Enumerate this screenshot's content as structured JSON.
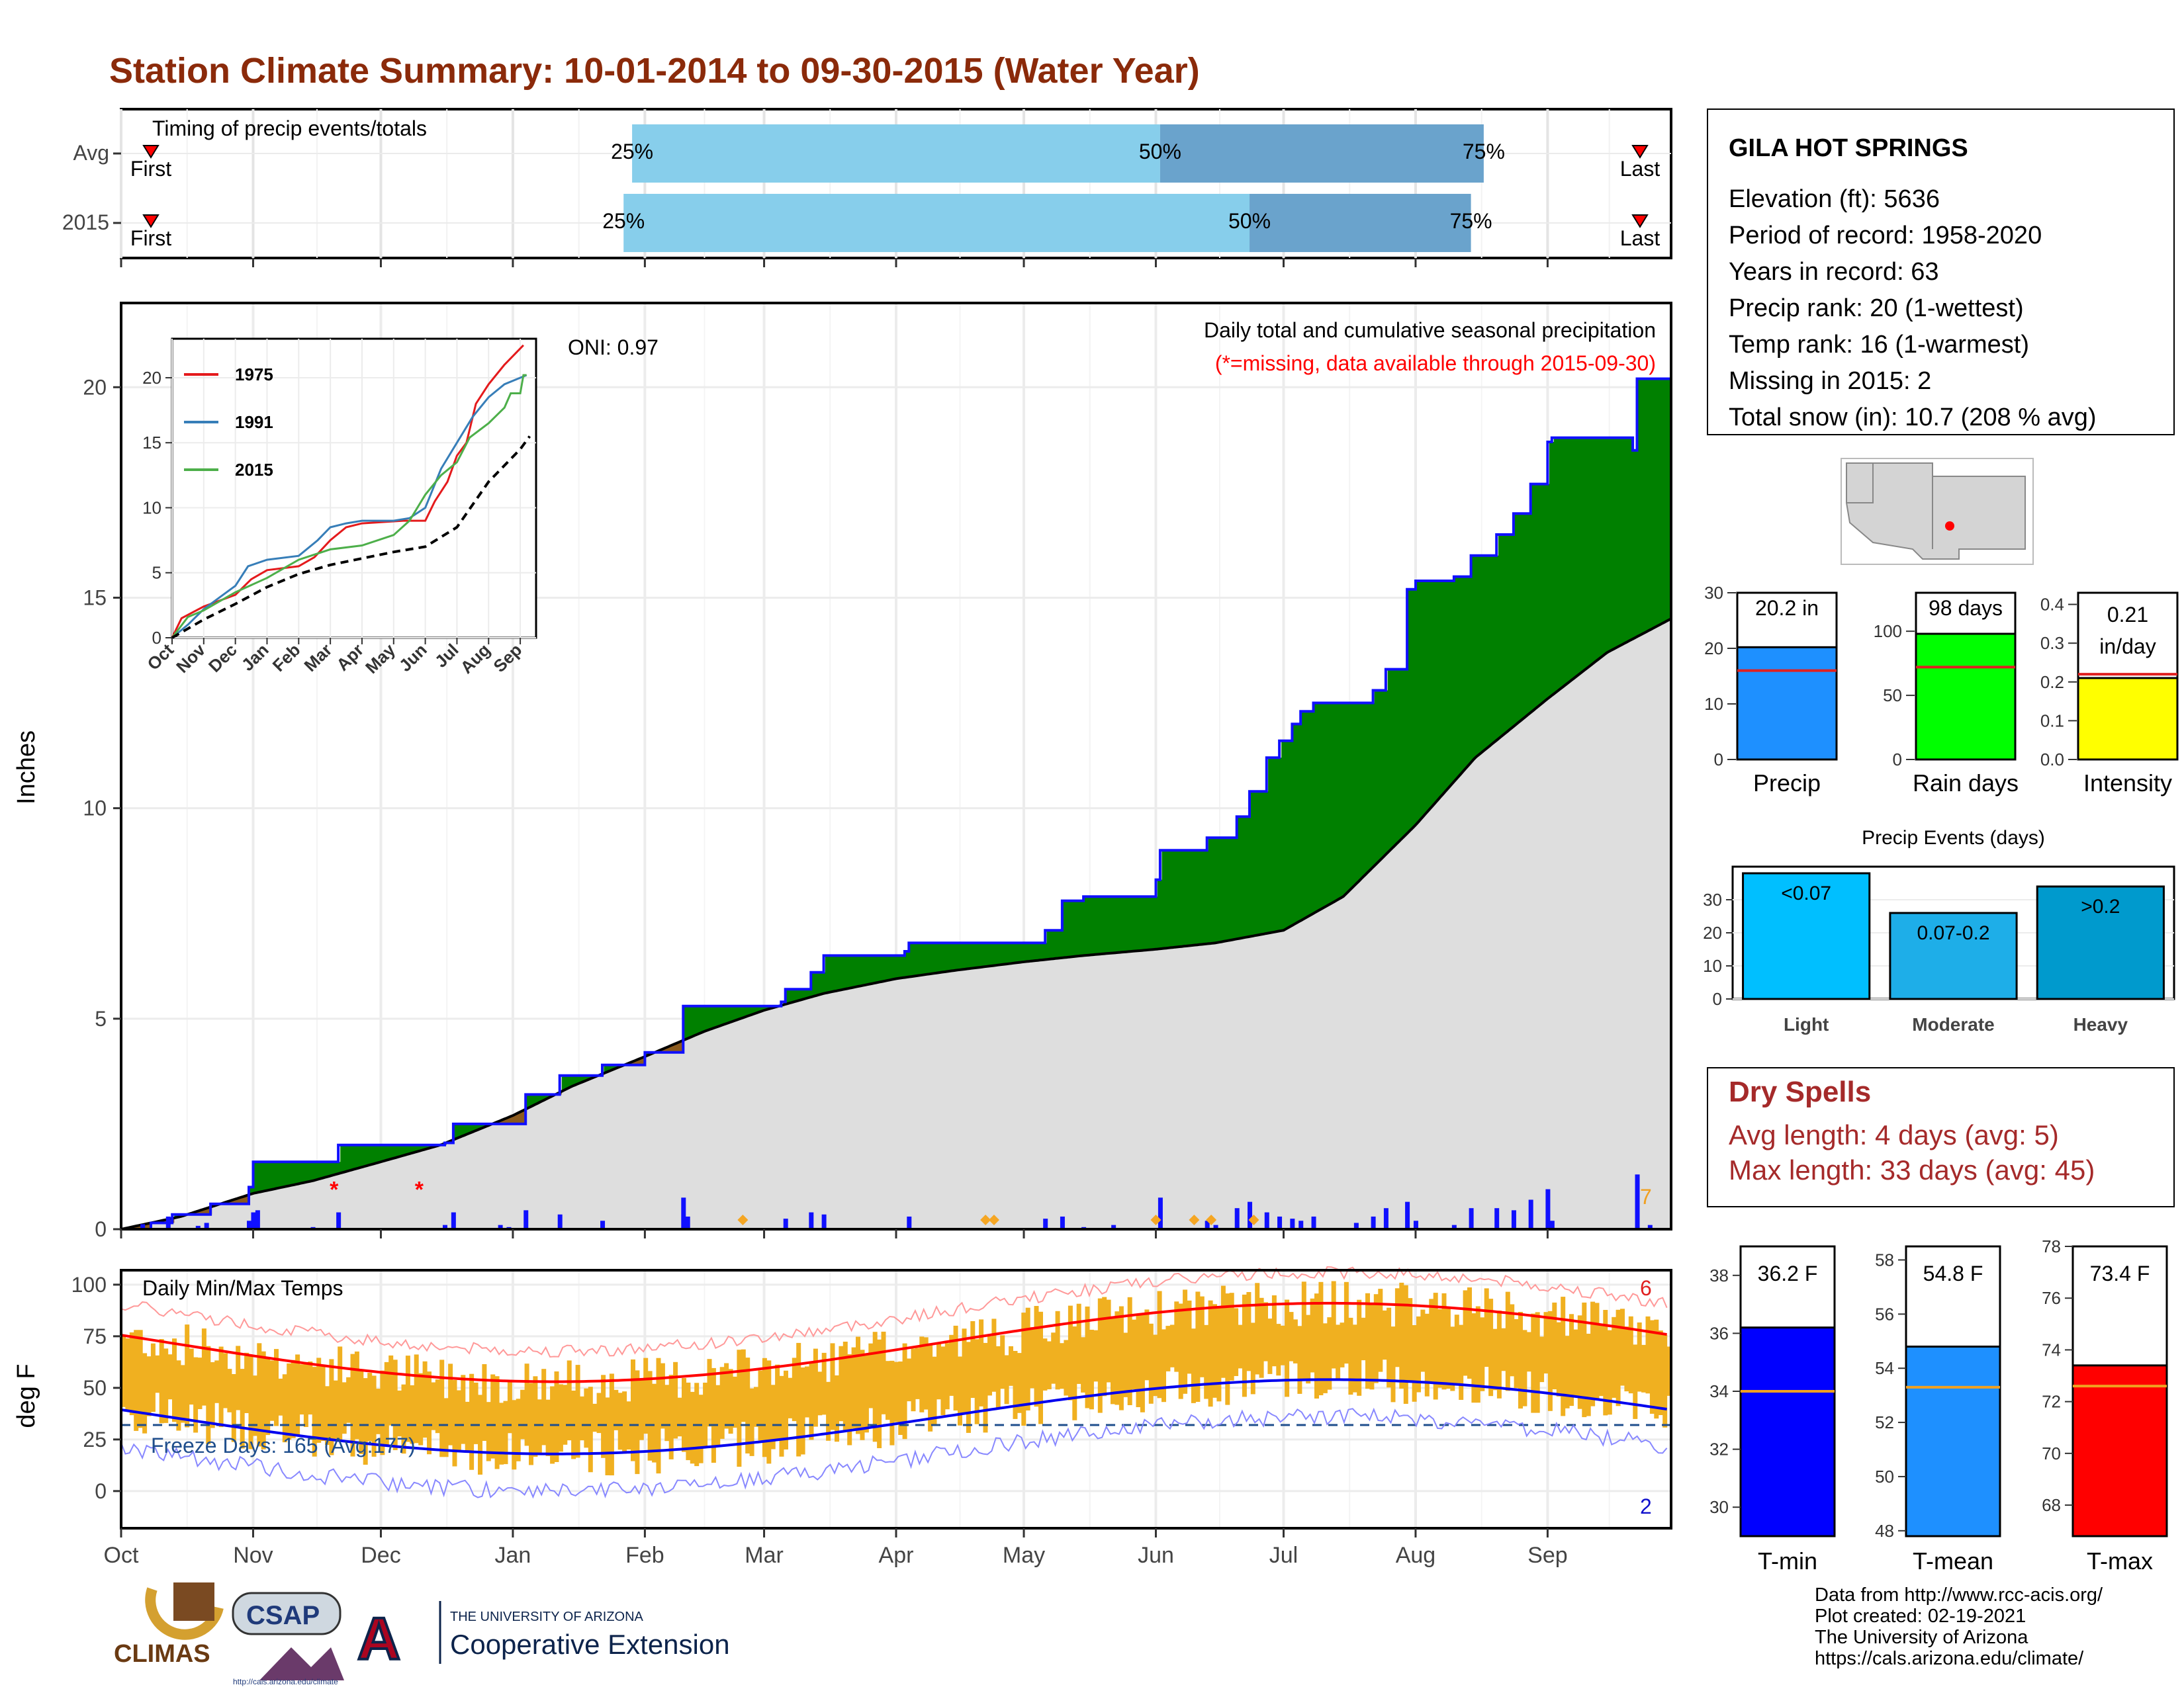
{
  "title": "Station Climate Summary: 10-01-2014 to 09-30-2015 (Water Year)",
  "colors": {
    "title": "#8b2a0a",
    "green_above": "#008000",
    "brown_below": "#8b5a1e",
    "normal_fill": "#dedede",
    "precip_bar": "#1010ff",
    "timing_light": "#87ceeb",
    "timing_dark": "#6aa3cc",
    "temp_bar": "#f0b020",
    "missing": "#ff0000"
  },
  "timing": {
    "label": "Timing of precip events/totals",
    "rows": [
      {
        "name": "Avg",
        "first_label": "First",
        "last_label": "Last",
        "first_date": "2014-10-04",
        "last_date": "2015-09-30",
        "p25": "2015-01-29",
        "p50": "2015-06-02",
        "p75": "2015-08-17",
        "p25_label": "25%",
        "p50_label": "50%",
        "p75_label": "75%"
      },
      {
        "name": "2015",
        "first_label": "First",
        "last_label": "Last",
        "first_date": "2014-10-01",
        "last_date": "2015-09-30",
        "p25": "2015-01-27",
        "p50": "2015-06-23",
        "p75": "2015-08-14",
        "p25_label": "25%",
        "p50_label": "50%",
        "p75_label": "75%"
      }
    ]
  },
  "precip_chart": {
    "ylabel": "Inches",
    "yticks": [
      0,
      5,
      10,
      15,
      20
    ],
    "ylim": [
      0,
      22
    ],
    "oni_label": "ONI: 0.97",
    "legend_title": "Daily total and cumulative seasonal precipitation",
    "missing_note": "(*=missing, data available through 2015-09-30)",
    "right_count": "7",
    "missing_dates": [
      "2014-11-20",
      "2014-12-10"
    ],
    "snow_dates": [
      "2015-02-24",
      "2015-04-22",
      "2015-04-24",
      "2015-06-01",
      "2015-06-10",
      "2015-06-14",
      "2015-06-24"
    ],
    "cumulative_2015": [
      [
        "2014-10-01",
        0
      ],
      [
        "2014-10-08",
        0.15
      ],
      [
        "2014-10-13",
        0.35
      ],
      [
        "2014-10-22",
        0.6
      ],
      [
        "2014-10-31",
        1.0
      ],
      [
        "2014-11-01",
        1.6
      ],
      [
        "2014-11-20",
        1.6
      ],
      [
        "2014-11-21",
        2.0
      ],
      [
        "2014-12-16",
        2.05
      ],
      [
        "2014-12-18",
        2.5
      ],
      [
        "2015-01-04",
        3.2
      ],
      [
        "2015-01-12",
        3.65
      ],
      [
        "2015-01-22",
        3.9
      ],
      [
        "2015-02-01",
        4.2
      ],
      [
        "2015-02-09",
        4.2
      ],
      [
        "2015-02-10",
        5.3
      ],
      [
        "2015-03-05",
        5.4
      ],
      [
        "2015-03-06",
        5.7
      ],
      [
        "2015-03-12",
        6.1
      ],
      [
        "2015-03-15",
        6.5
      ],
      [
        "2015-04-03",
        6.6
      ],
      [
        "2015-04-04",
        6.8
      ],
      [
        "2015-05-06",
        7.1
      ],
      [
        "2015-05-10",
        7.8
      ],
      [
        "2015-05-15",
        7.9
      ],
      [
        "2015-06-01",
        8.3
      ],
      [
        "2015-06-02",
        9.0
      ],
      [
        "2015-06-12",
        9.0
      ],
      [
        "2015-06-13",
        9.3
      ],
      [
        "2015-06-20",
        9.8
      ],
      [
        "2015-06-23",
        10.4
      ],
      [
        "2015-06-27",
        11.2
      ],
      [
        "2015-06-30",
        11.6
      ],
      [
        "2015-07-03",
        12.0
      ],
      [
        "2015-07-05",
        12.3
      ],
      [
        "2015-07-08",
        12.5
      ],
      [
        "2015-07-22",
        12.8
      ],
      [
        "2015-07-25",
        13.3
      ],
      [
        "2015-07-30",
        15.2
      ],
      [
        "2015-08-01",
        15.4
      ],
      [
        "2015-08-10",
        15.5
      ],
      [
        "2015-08-14",
        16.0
      ],
      [
        "2015-08-20",
        16.5
      ],
      [
        "2015-08-24",
        17.0
      ],
      [
        "2015-08-28",
        17.7
      ],
      [
        "2015-09-01",
        18.7
      ],
      [
        "2015-09-02",
        18.8
      ],
      [
        "2015-09-09",
        18.8
      ],
      [
        "2015-09-21",
        18.5
      ],
      [
        "2015-09-22",
        20.2
      ],
      [
        "2015-09-30",
        20.2
      ]
    ],
    "cumulative_normal": [
      [
        "2014-10-01",
        0
      ],
      [
        "2014-10-15",
        0.3
      ],
      [
        "2014-11-01",
        0.85
      ],
      [
        "2014-11-15",
        1.15
      ],
      [
        "2014-12-01",
        1.6
      ],
      [
        "2014-12-15",
        2.0
      ],
      [
        "2015-01-01",
        2.7
      ],
      [
        "2015-01-15",
        3.4
      ],
      [
        "2015-02-01",
        4.1
      ],
      [
        "2015-02-15",
        4.7
      ],
      [
        "2015-03-01",
        5.2
      ],
      [
        "2015-03-15",
        5.6
      ],
      [
        "2015-04-01",
        5.95
      ],
      [
        "2015-04-15",
        6.15
      ],
      [
        "2015-05-01",
        6.35
      ],
      [
        "2015-05-15",
        6.5
      ],
      [
        "2015-06-01",
        6.65
      ],
      [
        "2015-06-15",
        6.8
      ],
      [
        "2015-07-01",
        7.1
      ],
      [
        "2015-07-15",
        7.9
      ],
      [
        "2015-08-01",
        9.6
      ],
      [
        "2015-08-15",
        11.2
      ],
      [
        "2015-09-01",
        12.6
      ],
      [
        "2015-09-15",
        13.7
      ],
      [
        "2015-09-30",
        14.5
      ]
    ],
    "daily_bars": [
      [
        "2014-10-06",
        0.12
      ],
      [
        "2014-10-12",
        0.3
      ],
      [
        "2014-10-19",
        0.08
      ],
      [
        "2014-10-21",
        0.15
      ],
      [
        "2014-10-31",
        0.2
      ],
      [
        "2014-11-01",
        0.4
      ],
      [
        "2014-11-02",
        0.45
      ],
      [
        "2014-11-15",
        0.05
      ],
      [
        "2014-11-21",
        0.4
      ],
      [
        "2014-12-16",
        0.1
      ],
      [
        "2014-12-18",
        0.4
      ],
      [
        "2014-12-29",
        0.1
      ],
      [
        "2014-12-31",
        0.05
      ],
      [
        "2015-01-04",
        0.45
      ],
      [
        "2015-01-12",
        0.35
      ],
      [
        "2015-01-22",
        0.2
      ],
      [
        "2015-02-10",
        0.75
      ],
      [
        "2015-02-11",
        0.3
      ],
      [
        "2015-03-06",
        0.25
      ],
      [
        "2015-03-12",
        0.4
      ],
      [
        "2015-03-15",
        0.35
      ],
      [
        "2015-04-04",
        0.3
      ],
      [
        "2015-05-06",
        0.25
      ],
      [
        "2015-05-10",
        0.3
      ],
      [
        "2015-05-15",
        0.05
      ],
      [
        "2015-05-22",
        0.1
      ],
      [
        "2015-06-02",
        0.75
      ],
      [
        "2015-06-13",
        0.2
      ],
      [
        "2015-06-15",
        0.1
      ],
      [
        "2015-06-20",
        0.5
      ],
      [
        "2015-06-23",
        0.65
      ],
      [
        "2015-06-27",
        0.4
      ],
      [
        "2015-06-30",
        0.3
      ],
      [
        "2015-07-03",
        0.25
      ],
      [
        "2015-07-05",
        0.2
      ],
      [
        "2015-07-08",
        0.3
      ],
      [
        "2015-07-18",
        0.15
      ],
      [
        "2015-07-22",
        0.3
      ],
      [
        "2015-07-25",
        0.5
      ],
      [
        "2015-07-30",
        0.65
      ],
      [
        "2015-08-01",
        0.2
      ],
      [
        "2015-08-10",
        0.1
      ],
      [
        "2015-08-14",
        0.5
      ],
      [
        "2015-08-20",
        0.5
      ],
      [
        "2015-08-24",
        0.45
      ],
      [
        "2015-08-28",
        0.7
      ],
      [
        "2015-09-01",
        0.95
      ],
      [
        "2015-09-02",
        0.2
      ],
      [
        "2015-09-22",
        1.3
      ],
      [
        "2015-09-25",
        0.1
      ]
    ]
  },
  "inset": {
    "yticks": [
      0,
      5,
      10,
      15,
      20
    ],
    "xlabels": [
      "Oct",
      "Nov",
      "Dec",
      "Jan",
      "Feb",
      "Mar",
      "Apr",
      "May",
      "Jun",
      "Jul",
      "Aug",
      "Sep"
    ],
    "series": [
      {
        "name": "1975",
        "color": "#e41a1c",
        "points": [
          [
            0,
            0
          ],
          [
            0.3,
            1.5
          ],
          [
            1,
            2.4
          ],
          [
            2,
            3.3
          ],
          [
            2.5,
            4.5
          ],
          [
            3,
            5.2
          ],
          [
            4,
            5.5
          ],
          [
            4.5,
            6.2
          ],
          [
            5,
            7.5
          ],
          [
            5.5,
            8.5
          ],
          [
            6,
            8.8
          ],
          [
            7.3,
            9.0
          ],
          [
            8,
            9.0
          ],
          [
            8.3,
            10.5
          ],
          [
            8.7,
            12
          ],
          [
            9,
            14
          ],
          [
            9.3,
            15
          ],
          [
            9.6,
            18
          ],
          [
            10,
            19.5
          ],
          [
            10.5,
            21
          ],
          [
            10.9,
            22
          ],
          [
            11.1,
            22.5
          ]
        ]
      },
      {
        "name": "1991",
        "color": "#377eb8",
        "points": [
          [
            0,
            0
          ],
          [
            0.5,
            1.0
          ],
          [
            1,
            2.2
          ],
          [
            1.5,
            3.1
          ],
          [
            2,
            4.0
          ],
          [
            2.4,
            5.5
          ],
          [
            3,
            6.0
          ],
          [
            4,
            6.3
          ],
          [
            4.6,
            7.5
          ],
          [
            5,
            8.5
          ],
          [
            5.5,
            8.8
          ],
          [
            6,
            9.0
          ],
          [
            7,
            9.0
          ],
          [
            7.5,
            9.2
          ],
          [
            8,
            10
          ],
          [
            8.5,
            13
          ],
          [
            9,
            15
          ],
          [
            9.5,
            17
          ],
          [
            10,
            18.5
          ],
          [
            10.5,
            19.5
          ],
          [
            11,
            20.0
          ],
          [
            11.2,
            20.2
          ]
        ]
      },
      {
        "name": "2015",
        "color": "#4daf4a",
        "points": [
          [
            0,
            0
          ],
          [
            0.5,
            1.6
          ],
          [
            1,
            2.1
          ],
          [
            2,
            3.5
          ],
          [
            3,
            4.6
          ],
          [
            3.5,
            5.3
          ],
          [
            4,
            6.0
          ],
          [
            5,
            6.8
          ],
          [
            6,
            7.1
          ],
          [
            7,
            7.9
          ],
          [
            7.5,
            9.0
          ],
          [
            8,
            11.0
          ],
          [
            8.5,
            12.5
          ],
          [
            9,
            13.5
          ],
          [
            9.4,
            15.4
          ],
          [
            10,
            16.5
          ],
          [
            10.5,
            17.7
          ],
          [
            10.7,
            18.8
          ],
          [
            11,
            18.8
          ],
          [
            11.1,
            20.2
          ],
          [
            11.2,
            20.2
          ]
        ]
      },
      {
        "name": "",
        "color": "#000000",
        "dashed": true,
        "points": [
          [
            0,
            0
          ],
          [
            1,
            1.4
          ],
          [
            2,
            2.6
          ],
          [
            3,
            3.9
          ],
          [
            4,
            4.9
          ],
          [
            5,
            5.6
          ],
          [
            6,
            6.1
          ],
          [
            7,
            6.6
          ],
          [
            8,
            7.0
          ],
          [
            9,
            8.5
          ],
          [
            10,
            12.0
          ],
          [
            11,
            14.5
          ],
          [
            11.3,
            15.5
          ]
        ]
      }
    ]
  },
  "temp_chart": {
    "ylabel": "deg F",
    "label": "Daily Min/Max Temps",
    "freeze_label": "Freeze Days: 165 (Avg:177)",
    "yticks": [
      0,
      25,
      50,
      75,
      100
    ],
    "ylim": [
      -18,
      107
    ],
    "count_high": "6",
    "count_low": "2",
    "freeze_line": 32,
    "xlabels": [
      "Oct",
      "Nov",
      "Dec",
      "Jan",
      "Feb",
      "Mar",
      "Apr",
      "May",
      "Jun",
      "Jul",
      "Aug",
      "Sep"
    ]
  },
  "station": {
    "name": "GILA HOT SPRINGS",
    "lines": [
      "Elevation (ft): 5636",
      "Period of record: 1958-2020",
      "Years in record: 63",
      "Precip rank: 20 (1-wettest)",
      "Temp rank: 16 (1-warmest)",
      "Missing in 2015: 2",
      "Total snow (in): 10.7 (208 % avg)"
    ]
  },
  "mini_bars": [
    {
      "label": "Precip",
      "value_text": "20.2 in",
      "value": 20.2,
      "avg": 16.0,
      "ymax": 30,
      "yticks": [
        0,
        10,
        20,
        30
      ],
      "color": "#1e90ff"
    },
    {
      "label": "Rain days",
      "value_text": "98 days",
      "value": 98,
      "avg": 72,
      "ymax": 130,
      "yticks": [
        0,
        50,
        100
      ],
      "color": "#00ff00"
    },
    {
      "label": "Intensity",
      "value_text": "0.21 in/day",
      "value_line1": "0.21",
      "value_line2": "in/day",
      "value": 0.21,
      "avg": 0.22,
      "ymax": 0.43,
      "yticks": [
        0.0,
        0.1,
        0.2,
        0.3,
        0.4
      ],
      "color": "#ffff00"
    }
  ],
  "precip_events": {
    "title": "Precip Events (days)",
    "yticks": [
      0,
      10,
      20,
      30
    ],
    "ymax": 40,
    "bars": [
      {
        "label": "Light",
        "bar_text": "<0.07",
        "value": 38,
        "color": "#00bfff"
      },
      {
        "label": "Moderate",
        "bar_text": "0.07-0.2",
        "value": 26,
        "color": "#1eaee8"
      },
      {
        "label": "Heavy",
        "bar_text": ">0.2",
        "value": 34,
        "color": "#009acd"
      }
    ]
  },
  "dry_spells": {
    "title": "Dry Spells",
    "avg_length": "Avg length: 4 days (avg: 5)",
    "max_length": "Max length: 33 days (avg: 45)"
  },
  "temp_bars": [
    {
      "label": "T-min",
      "value_text": "36.2 F",
      "value": 36.2,
      "avg": 34.0,
      "ymin": 29,
      "ymax": 39,
      "yticks": [
        30,
        32,
        34,
        36,
        38
      ],
      "color": "#0000ff"
    },
    {
      "label": "T-mean",
      "value_text": "54.8 F",
      "value": 54.8,
      "avg": 53.3,
      "ymin": 47.8,
      "ymax": 58.5,
      "yticks": [
        48,
        50,
        52,
        54,
        56,
        58
      ],
      "color": "#1e90ff"
    },
    {
      "label": "T-max",
      "value_text": "73.4 F",
      "value": 73.4,
      "avg": 72.6,
      "ymin": 66.8,
      "ymax": 78,
      "yticks": [
        68,
        70,
        72,
        74,
        76,
        78
      ],
      "color": "#ff0000"
    }
  ],
  "logos": {
    "climas": "CLIMAS",
    "csap": "CSAP",
    "csap_url": "http://cals.arizona.edu/climate",
    "ua_line1": "THE UNIVERSITY OF ARIZONA",
    "ua_line2": "Cooperative Extension"
  },
  "footer": [
    "Data from http://www.rcc-acis.org/",
    "Plot created: 02-19-2021",
    "The University of Arizona",
    "https://cals.arizona.edu/climate/"
  ],
  "chart_data": [
    {
      "type": "area",
      "title": "Daily total and cumulative seasonal precipitation",
      "ylabel": "Inches",
      "ylim": [
        0,
        22
      ],
      "x_range": [
        "2014-10-01",
        "2015-09-30"
      ],
      "series_ref": [
        "precip_chart.cumulative_2015",
        "precip_chart.cumulative_normal",
        "precip_chart.daily_bars"
      ]
    },
    {
      "type": "bar",
      "title": "Precip Events (days)",
      "categories": [
        "Light",
        "Moderate",
        "Heavy"
      ],
      "values": [
        38,
        26,
        34
      ]
    },
    {
      "type": "bar",
      "categories": [
        "Precip",
        "Rain days",
        "Intensity"
      ],
      "values": [
        20.2,
        98,
        0.21
      ]
    },
    {
      "type": "bar",
      "categories": [
        "T-min",
        "T-mean",
        "T-max"
      ],
      "values": [
        36.2,
        54.8,
        73.4
      ]
    },
    {
      "type": "line",
      "title": "Daily Min/Max Temps",
      "ylabel": "deg F",
      "ylim": [
        -18,
        107
      ],
      "x_range": [
        "2014-10-01",
        "2015-09-30"
      ]
    }
  ]
}
